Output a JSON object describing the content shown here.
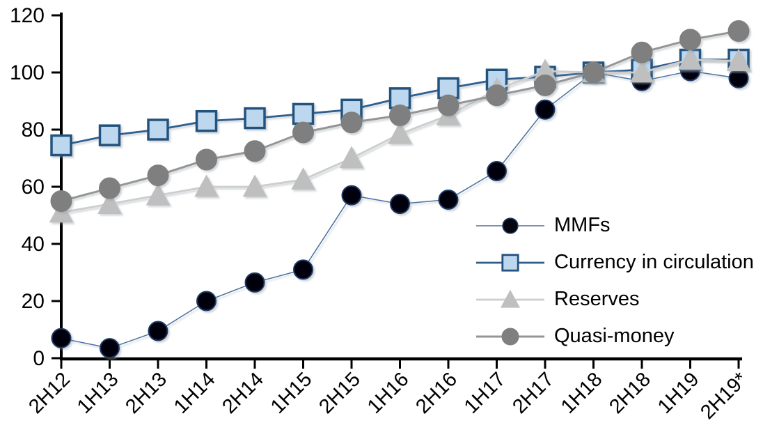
{
  "chart_data": {
    "type": "line",
    "title": "",
    "categories": [
      "2H12",
      "1H13",
      "2H13",
      "1H14",
      "2H14",
      "1H15",
      "2H15",
      "1H16",
      "2H16",
      "1H17",
      "2H17",
      "1H18",
      "2H18",
      "1H19",
      "2H19*"
    ],
    "series": [
      {
        "name": "MMFs",
        "marker": "circle",
        "marker_size": 27,
        "marker_fill": "#06060f",
        "marker_stroke": "#1f3864",
        "marker_stroke_width": 2,
        "line_color": "#4a6f9b",
        "line_width": 1.5,
        "values": [
          7,
          3.5,
          9.5,
          20,
          26.5,
          31,
          57,
          54,
          55.5,
          65.5,
          87,
          100,
          97,
          100.5,
          98
        ]
      },
      {
        "name": "Currency in circulation",
        "marker": "square",
        "marker_size": 28,
        "marker_fill": "#bdd7ee",
        "marker_stroke": "#24527e",
        "marker_stroke_width": 3.5,
        "line_color": "#2e5e8e",
        "line_width": 2.8,
        "values": [
          74.5,
          78,
          80,
          83,
          84,
          85.5,
          87,
          91,
          94.5,
          97.5,
          98.5,
          100,
          101,
          104.5,
          104.5
        ]
      },
      {
        "name": "Reserves",
        "marker": "triangle",
        "marker_size": 33,
        "marker_fill": "#bfbfbf",
        "marker_stroke": "#bfbfbf",
        "marker_stroke_width": 1,
        "line_color": "#cdcdcd",
        "line_width": 2.8,
        "values": [
          51,
          54,
          57,
          60,
          60,
          62.5,
          70,
          78.5,
          85,
          94,
          100.5,
          100,
          100,
          104.5,
          104
        ]
      },
      {
        "name": "Quasi-money",
        "marker": "circle",
        "marker_size": 30,
        "marker_fill": "#7f7f7f",
        "marker_stroke": "#7f7f7f",
        "marker_stroke_width": 1,
        "line_color": "#959595",
        "line_width": 3,
        "values": [
          55,
          59.5,
          64,
          69.5,
          72.5,
          79,
          82.5,
          85,
          88.5,
          92,
          95.5,
          100,
          107,
          111.5,
          114.5
        ]
      }
    ],
    "x_axis": {
      "label_rotation_deg": -45
    },
    "y_axis": {
      "min": 0,
      "max": 120,
      "step": 20,
      "tick_labels": [
        "0",
        "20",
        "40",
        "60",
        "80",
        "100",
        "120"
      ]
    },
    "legend": {
      "position": "middle-right",
      "entries": [
        "MMFs",
        "Currency in circulation",
        "Reserves",
        "Quasi-money"
      ]
    },
    "grid": false,
    "axis_color": "#000000",
    "background": "#ffffff"
  }
}
